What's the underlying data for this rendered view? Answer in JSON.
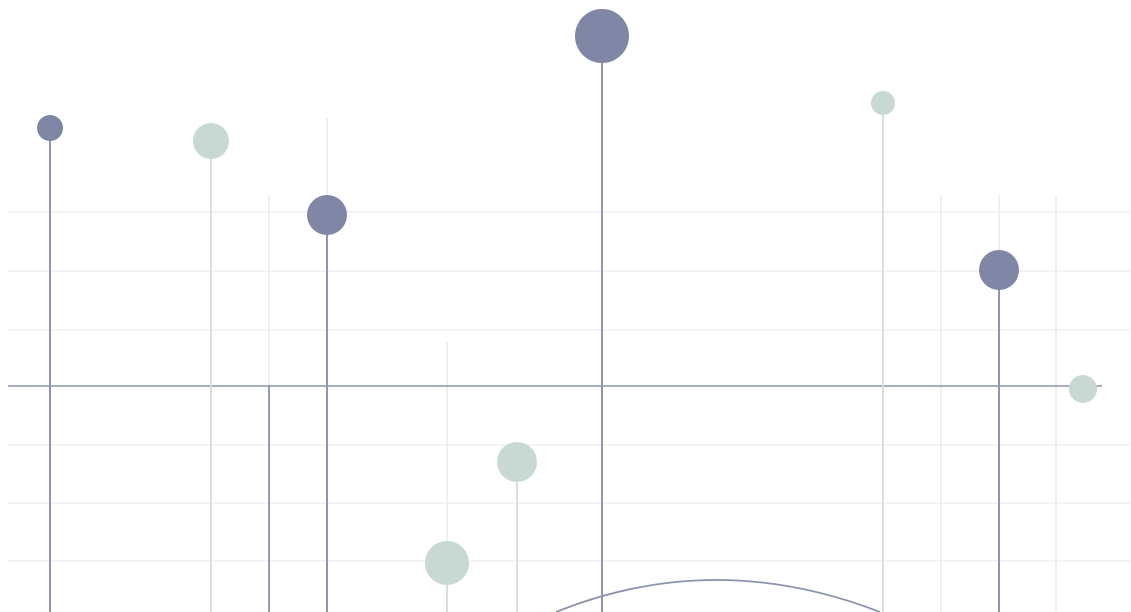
{
  "illustration": {
    "kind": "decorative lollipop-style line graphic",
    "colors": {
      "background": "#ffffff",
      "grid": "#e9eef0",
      "axis": "#8b93ad",
      "dark_marker": "#7f86a6",
      "light_marker": "#c7d9d2",
      "dark_stem": "#8e95b1",
      "light_stem": "#d6e1dd",
      "guide_line": "#e5ebea",
      "arc": "#8b93ad"
    },
    "marker_tones": [
      "dark",
      "light",
      "light",
      "dark",
      "dark",
      "light",
      "light",
      "dark",
      "light"
    ]
  }
}
